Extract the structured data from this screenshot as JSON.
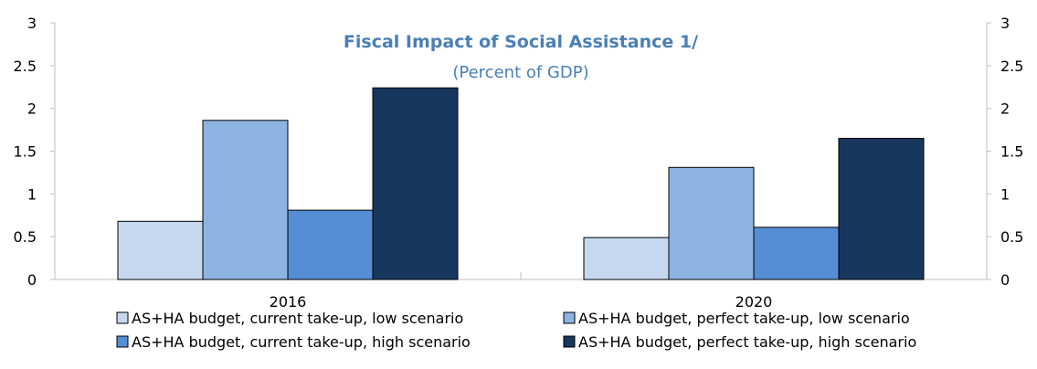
{
  "chart_data": {
    "type": "bar",
    "title": "Fiscal Impact of Social Assistance 1/",
    "subtitle": "(Percent of GDP)",
    "title_color": "#4a7fb5",
    "categories": [
      "2016",
      "2020"
    ],
    "series": [
      {
        "name": "AS+HA budget, current take-up, low scenario",
        "color": "#c6d8ef",
        "values": [
          0.68,
          0.49
        ]
      },
      {
        "name": "AS+HA budget, perfect take-up, low scenario",
        "color": "#8db3e2",
        "values": [
          1.86,
          1.31
        ]
      },
      {
        "name": "AS+HA budget, current take-up, high scenario",
        "color": "#558ed5",
        "values": [
          0.81,
          0.61
        ]
      },
      {
        "name": "AS+HA budget, perfect take-up, high scenario",
        "color": "#17375e",
        "values": [
          2.24,
          1.65
        ]
      }
    ],
    "ylim": [
      0,
      3
    ],
    "yticks": [
      "0",
      "0.5",
      "1",
      "1.5",
      "2",
      "2.5",
      "3"
    ],
    "y2ticks": [
      "0",
      "0.5",
      "1",
      "1.5",
      "2",
      "2.5",
      "3"
    ],
    "grid": false,
    "legend_position": "bottom"
  }
}
